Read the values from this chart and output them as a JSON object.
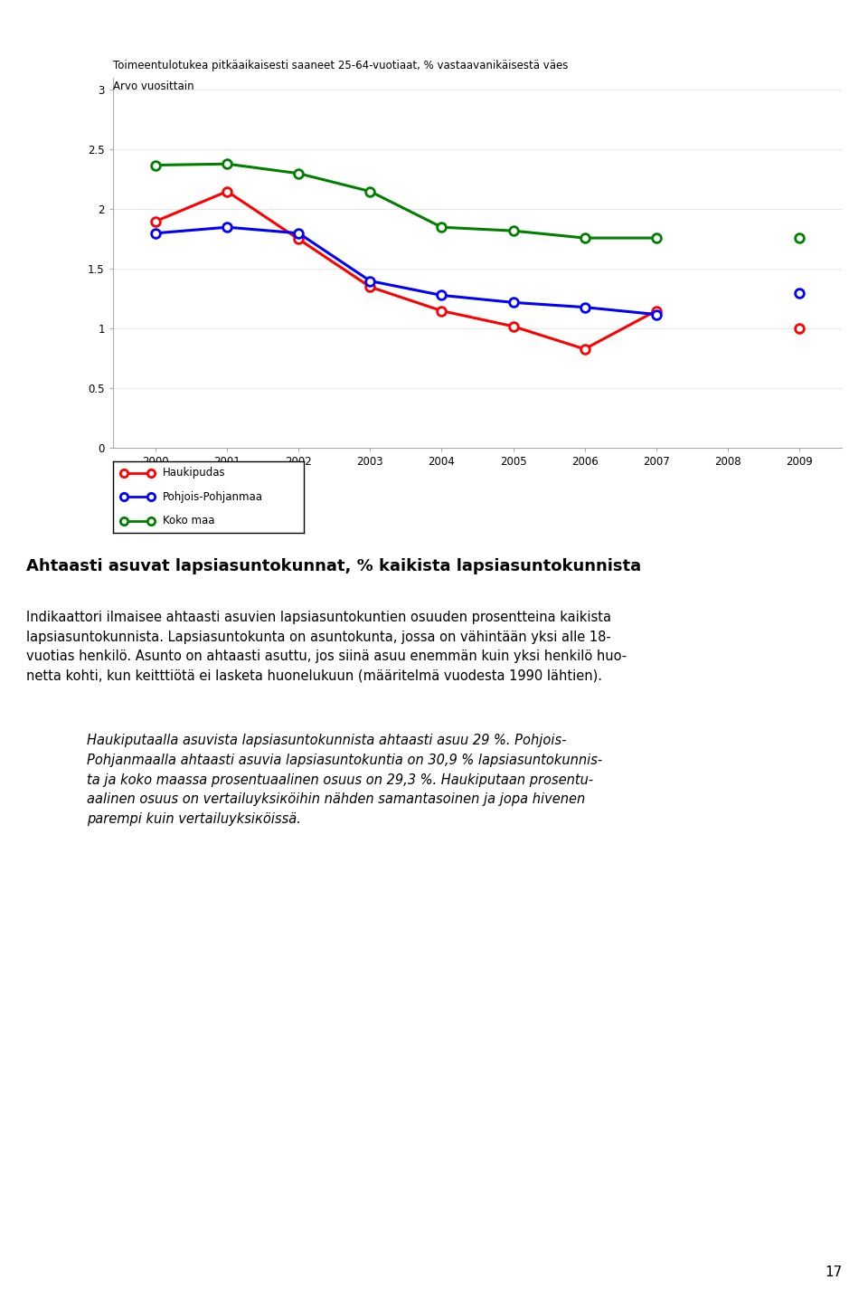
{
  "years": [
    2000,
    2001,
    2002,
    2003,
    2004,
    2005,
    2006,
    2007,
    2008,
    2009
  ],
  "haukipudas": [
    1.9,
    2.15,
    1.75,
    1.35,
    1.15,
    1.02,
    0.83,
    1.15,
    null,
    1.0
  ],
  "pohjois_pohjanmaa": [
    1.8,
    1.85,
    1.8,
    1.4,
    1.28,
    1.22,
    1.18,
    1.12,
    null,
    1.3
  ],
  "koko_maa": [
    2.37,
    2.38,
    2.3,
    2.15,
    1.85,
    1.82,
    1.76,
    1.76,
    null,
    1.76
  ],
  "title_line1": "Toimeentulotukea pitkäaikaisesti saaneet 25-64-vuotiaat, % vastaavanikäisestä väes",
  "title_line2": "Arvo vuosittain",
  "legend_labels": [
    "Haukipudas",
    "Pohjois-Pohjanmaa",
    "Koko maa"
  ],
  "legend_colors": [
    "red",
    "blue",
    "green"
  ],
  "ylim": [
    0,
    3.1
  ],
  "yticks": [
    0,
    0.5,
    1.0,
    1.5,
    2.0,
    2.5,
    3.0
  ],
  "ytick_labels": [
    "0",
    "0.5",
    "1",
    "1.5",
    "2",
    "2.5",
    "3"
  ],
  "heading": "Ahtaasti asuvat lapsiasuntokunnat, % kaikista lapsiasuntokunnista",
  "body1_line1": "Indikaattori ilmaisee ahtaasti asuvien lapsiasuntokuntien osuuden prosentteina kaikista",
  "body1_line2": "lapsiasuntokunnista. Lapsiasuntokunta on asuntokunta, jossa on vähintään yksi alle 18-",
  "body1_line3": "vuotias henkilö. Asunto on ahtaasti asuttu, jos siinä asuu enemmän kuin yksi henkilö huo-",
  "body1_line4": "netta kohti, kun keitttiötä ei lasketa huonelukuun (määritelmä vuodesta 1990 lähtien).",
  "body2_line1": "Haukiputaalla asuvista lapsiasuntokunnista ahtaasti asuu ",
  "body2_bold": "29 %",
  "body2_line1end": ". Pohjois-",
  "body2_line2": "Pohjanmaalla ahtaasti asuvia lapsiasuntokuntia on 30,9 % lapsiasuntokunnis-",
  "body2_line3": "ta ja koko maassa prosentuaalinen osuus on 29,3 %. Haukiputaan prosentu-",
  "body2_line4": "aalinen osuus on vertailuyksiкöihin nähden samantasoinen ja jopa hivenen",
  "body2_line5": "parempi kuin vertailuyksiкöissä.",
  "page_number": "17",
  "background_color": "#ffffff"
}
